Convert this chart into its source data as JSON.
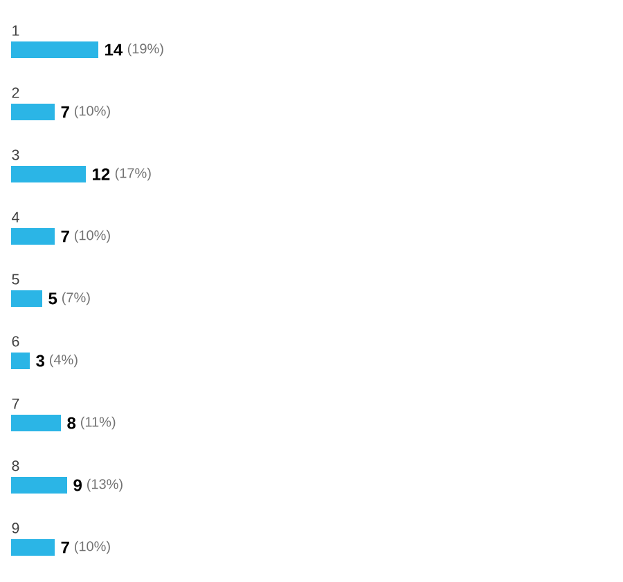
{
  "chart_data": {
    "type": "bar",
    "orientation": "horizontal",
    "categories": [
      "1",
      "2",
      "3",
      "4",
      "5",
      "6",
      "7",
      "8",
      "9"
    ],
    "values": [
      14,
      7,
      12,
      7,
      5,
      3,
      8,
      9,
      7
    ],
    "color": "#2bb5e6",
    "tick_labels": "y",
    "data_labels": true,
    "annotations": [
      {
        "text": "(19%)",
        "x": 14,
        "y": "1"
      },
      {
        "text": "(10%)",
        "x": 7,
        "y": "2"
      },
      {
        "text": "(17%)",
        "x": 12,
        "y": "3"
      },
      {
        "text": "(10%)",
        "x": 7,
        "y": "4"
      },
      {
        "text": "(7%)",
        "x": 5,
        "y": "5"
      },
      {
        "text": "(4%)",
        "x": 3,
        "y": "6"
      },
      {
        "text": "(11%)",
        "x": 8,
        "y": "7"
      },
      {
        "text": "(13%)",
        "x": 9,
        "y": "8"
      },
      {
        "text": "(10%)",
        "x": 7,
        "y": "9"
      }
    ]
  }
}
